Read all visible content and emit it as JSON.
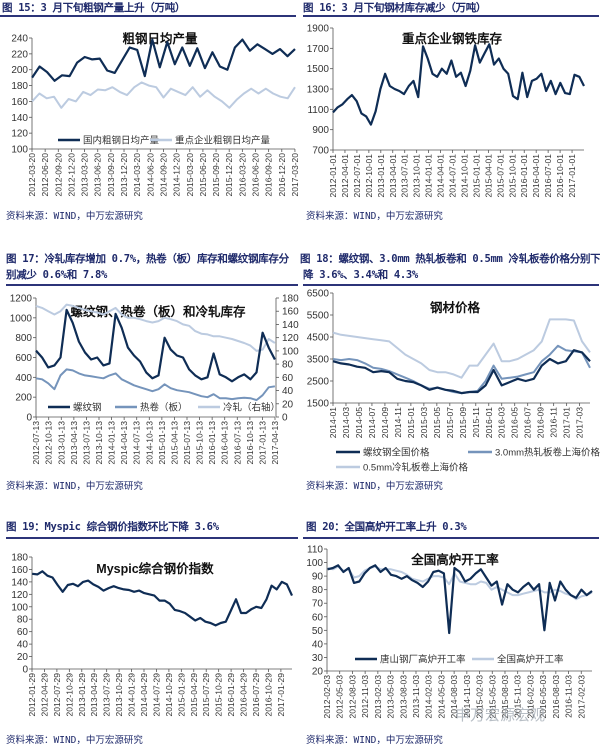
{
  "source_text": "资料来源：WIND，中万宏源研究",
  "panels": [
    {
      "heading": "图 15：3 月下旬粗钢产量上升（万吨）"
    },
    {
      "heading": "图 16：3 月下旬钢材库存减少（万吨）"
    },
    {
      "heading": "图 17：冷轧库存增加 0.7%，热卷（板）库存和螺纹钢库存分",
      "heading2": "别减少 0.6%和 7.8%"
    },
    {
      "heading": "图 18：螺纹钢、3.0mm 热轧板卷和 0.5mm 冷轧板卷价格分别下",
      "heading2": "降 3.6%、3.4%和 4.3%"
    },
    {
      "heading": "图 19：Myspic 综合钢价指数环比下降 3.6%"
    },
    {
      "heading": "图 20：全国高炉开工率上升 0.3%"
    }
  ],
  "colors": {
    "dark": "#0f2d55",
    "mid": "#7594bb",
    "light": "#bccbe0",
    "rule": "#2c3479"
  },
  "chart_data": [
    {
      "type": "line",
      "title": "粗钢日均产量",
      "ylim": [
        100,
        240
      ],
      "ystep": 20,
      "xticks": [
        "2012-03-20",
        "2012-06-20",
        "2012-09-20",
        "2012-12-20",
        "2013-03-20",
        "2013-06-20",
        "2013-09-20",
        "2013-12-20",
        "2014-03-20",
        "2014-06-20",
        "2014-09-20",
        "2014-12-20",
        "2015-03-20",
        "2015-06-20",
        "2015-09-20",
        "2015-12-20",
        "2016-03-20",
        "2016-06-20",
        "2016-09-20",
        "2016-12-20",
        "2017-03-20"
      ],
      "legend_position": "bottom-inside",
      "series": [
        {
          "name": "国内粗钢日均产量",
          "color": "dark",
          "x_start": 2012.22,
          "x_end": 2017.22,
          "values": [
            190,
            204,
            197,
            186,
            193,
            192,
            209,
            216,
            213,
            214,
            199,
            196,
            212,
            228,
            225,
            192,
            238,
            203,
            235,
            207,
            228,
            205,
            227,
            202,
            222,
            204,
            200,
            228,
            238,
            224,
            232,
            226,
            220,
            226,
            217,
            226
          ]
        },
        {
          "name": "重点企业粗钢日均产量",
          "color": "light",
          "x_start": 2012.22,
          "x_end": 2017.22,
          "values": [
            160,
            170,
            164,
            166,
            152,
            163,
            160,
            172,
            168,
            175,
            174,
            178,
            172,
            168,
            178,
            184,
            180,
            178,
            165,
            176,
            172,
            168,
            178,
            166,
            174,
            166,
            160,
            152,
            162,
            170,
            176,
            170,
            176,
            170,
            166,
            164,
            178
          ]
        }
      ]
    },
    {
      "type": "line",
      "title": "重点企业钢铁库存",
      "ylim": [
        700,
        1900
      ],
      "ystep": 200,
      "xticks": [
        "2012-01-01",
        "2012-04-01",
        "2012-07-01",
        "2012-10-01",
        "2013-01-01",
        "2013-04-01",
        "2013-07-01",
        "2013-10-01",
        "2014-01-01",
        "2014-04-01",
        "2014-07-01",
        "2014-10-01",
        "2015-01-01",
        "2015-04-01",
        "2015-07-01",
        "2015-10-01",
        "2016-01-01",
        "2016-04-01",
        "2016-07-01",
        "2016-10-01",
        "2017-01-01"
      ],
      "series": [
        {
          "name": "重点企业钢铁库存",
          "color": "dark",
          "x_start": 2012.0,
          "x_end": 2017.25,
          "values": [
            1070,
            1120,
            1150,
            1200,
            1240,
            1180,
            1060,
            1030,
            950,
            1080,
            1300,
            1450,
            1330,
            1300,
            1280,
            1250,
            1330,
            1380,
            1220,
            1720,
            1600,
            1450,
            1420,
            1500,
            1450,
            1580,
            1420,
            1460,
            1330,
            1480,
            1730,
            1560,
            1650,
            1740,
            1540,
            1600,
            1500,
            1450,
            1230,
            1200,
            1460,
            1220,
            1380,
            1400,
            1450,
            1280,
            1380,
            1250,
            1360,
            1260,
            1250,
            1440,
            1420,
            1330
          ]
        }
      ]
    },
    {
      "type": "line",
      "title": "螺纹钢、热卷（板）和冷轧库存",
      "ylim": [
        0,
        1200
      ],
      "ystep": 200,
      "y2lim": [
        0,
        180
      ],
      "y2step": 20,
      "xticks": [
        "2012-07-13",
        "2012-10-13",
        "2013-01-13",
        "2013-04-13",
        "2013-07-13",
        "2013-10-13",
        "2014-01-13",
        "2014-04-13",
        "2014-07-13",
        "2014-10-13",
        "2015-01-13",
        "2015-04-13",
        "2015-07-13",
        "2015-10-13",
        "2016-01-13",
        "2016-04-13",
        "2016-07-13",
        "2016-10-13",
        "2017-01-13",
        "2017-04-13"
      ],
      "legend_position": "bottom-inside",
      "series": [
        {
          "name": "螺纹钢",
          "color": "dark",
          "axis": "left",
          "x_start": 2012.53,
          "x_end": 2017.28,
          "values": [
            670,
            600,
            500,
            520,
            600,
            1080,
            950,
            760,
            650,
            580,
            600,
            520,
            540,
            1040,
            900,
            700,
            620,
            560,
            450,
            390,
            420,
            800,
            680,
            620,
            600,
            480,
            420,
            380,
            400,
            640,
            430,
            400,
            360,
            400,
            430,
            380,
            450,
            850,
            700,
            580
          ]
        },
        {
          "name": "热卷（板）",
          "color": "mid",
          "axis": "left",
          "x_start": 2012.53,
          "x_end": 2017.28,
          "values": [
            390,
            380,
            340,
            280,
            420,
            480,
            470,
            440,
            420,
            410,
            400,
            390,
            420,
            440,
            380,
            350,
            320,
            300,
            280,
            260,
            280,
            330,
            290,
            270,
            260,
            250,
            230,
            210,
            200,
            230,
            190,
            190,
            180,
            190,
            195,
            190,
            170,
            220,
            300,
            310
          ]
        },
        {
          "name": "冷轧（右轴）",
          "color": "light",
          "axis": "right",
          "x_start": 2012.53,
          "x_end": 2017.28,
          "values": [
            168,
            165,
            160,
            155,
            160,
            170,
            168,
            165,
            162,
            160,
            158,
            155,
            160,
            165,
            155,
            150,
            150,
            148,
            145,
            143,
            145,
            150,
            148,
            145,
            140,
            138,
            130,
            126,
            125,
            122,
            122,
            120,
            118,
            115,
            112,
            108,
            100,
            102,
            118,
            112
          ]
        }
      ]
    },
    {
      "type": "line",
      "title": "钢材价格",
      "ylim": [
        1500,
        6500
      ],
      "ystep": 1000,
      "xticks": [
        "2014-01",
        "2014-03",
        "2014-05",
        "2014-07",
        "2014-09",
        "2014-11",
        "2015-01",
        "2015-03",
        "2015-05",
        "2015-07",
        "2015-09",
        "2015-11",
        "2016-01",
        "2016-03",
        "2016-05",
        "2016-07",
        "2016-09",
        "2016-11",
        "2017-01",
        "2017-03"
      ],
      "legend_position": "below",
      "series": [
        {
          "name": "螺纹钢全国价格",
          "color": "dark",
          "x_start": 2014.0,
          "x_end": 2017.3,
          "values": [
            3400,
            3300,
            3250,
            3150,
            3100,
            2900,
            2950,
            2900,
            2600,
            2500,
            2450,
            2300,
            2100,
            2200,
            2100,
            2050,
            1950,
            2000,
            2000,
            2300,
            3000,
            2300,
            2450,
            2600,
            2500,
            2600,
            3200,
            3500,
            3300,
            3400,
            3900,
            3800,
            3400
          ]
        },
        {
          "name": "3.0mm热轧板卷上海价格",
          "color": "mid",
          "x_start": 2014.0,
          "x_end": 2017.3,
          "values": [
            3500,
            3450,
            3500,
            3450,
            3300,
            3100,
            3050,
            2950,
            2800,
            2650,
            2500,
            2300,
            2150,
            2200,
            2100,
            2000,
            1950,
            2000,
            2050,
            2500,
            3200,
            2600,
            2650,
            2700,
            2800,
            2900,
            3400,
            3700,
            4100,
            3900,
            3850,
            3800,
            3100
          ]
        },
        {
          "name": "0.5mm冷轧板卷上海价格",
          "color": "light",
          "x_start": 2014.0,
          "x_end": 2017.3,
          "values": [
            4700,
            4600,
            4550,
            4500,
            4450,
            4400,
            4350,
            4300,
            4000,
            3700,
            3500,
            3300,
            3000,
            2900,
            2900,
            2800,
            2650,
            3200,
            3200,
            3700,
            4200,
            3400,
            3400,
            3500,
            3700,
            3900,
            4300,
            5300,
            5300,
            5300,
            5250,
            4300,
            3800
          ]
        }
      ]
    },
    {
      "type": "line",
      "title": "Myspic综合钢价指数",
      "ylim": [
        0,
        180
      ],
      "ystep": 20,
      "xticks": [
        "2012-01-29",
        "2012-04-29",
        "2012-07-29",
        "2012-10-29",
        "2013-01-29",
        "2013-04-29",
        "2013-07-29",
        "2013-10-29",
        "2014-01-29",
        "2014-04-29",
        "2014-07-29",
        "2014-10-29",
        "2015-01-29",
        "2015-04-29",
        "2015-07-29",
        "2015-10-29",
        "2016-01-29",
        "2016-04-29",
        "2016-07-29",
        "2016-10-29",
        "2017-01-29"
      ],
      "series": [
        {
          "name": "Myspic综合钢价指数",
          "color": "dark",
          "x_start": 2012.08,
          "x_end": 2017.3,
          "values": [
            153,
            152,
            157,
            150,
            147,
            135,
            124,
            135,
            137,
            133,
            140,
            142,
            136,
            132,
            126,
            130,
            133,
            130,
            128,
            127,
            124,
            126,
            122,
            120,
            118,
            110,
            110,
            105,
            95,
            93,
            90,
            84,
            78,
            82,
            76,
            74,
            70,
            74,
            76,
            94,
            112,
            90,
            90,
            96,
            100,
            98,
            112,
            134,
            128,
            140,
            136,
            118
          ]
        }
      ]
    },
    {
      "type": "line",
      "title": "全国高炉开工率",
      "ylim": [
        20,
        110
      ],
      "ystep": 10,
      "xticks": [
        "2012-02-03",
        "2012-05-03",
        "2012-08-03",
        "2012-11-03",
        "2013-02-03",
        "2013-05-03",
        "2013-08-03",
        "2013-11-03",
        "2014-02-03",
        "2014-05-03",
        "2014-08-03",
        "2014-11-03",
        "2015-02-03",
        "2015-05-03",
        "2015-08-03",
        "2015-11-03",
        "2016-02-03",
        "2016-05-03",
        "2016-08-03",
        "2016-11-03",
        "2017-02-03"
      ],
      "legend_position": "bottom-inside",
      "watermark": "申万宏源宏观",
      "series": [
        {
          "name": "唐山钢厂高炉开工率",
          "color": "dark",
          "x_start": 2012.1,
          "x_end": 2017.3,
          "values": [
            95,
            96,
            98,
            93,
            96,
            85,
            86,
            92,
            96,
            98,
            93,
            96,
            91,
            90,
            88,
            90,
            87,
            85,
            82,
            86,
            93,
            94,
            92,
            48,
            96,
            93,
            86,
            88,
            92,
            95,
            89,
            83,
            86,
            69,
            84,
            80,
            78,
            82,
            85,
            80,
            84,
            50,
            85,
            72,
            86,
            80,
            76,
            74,
            80,
            76,
            79
          ]
        },
        {
          "name": "全国高炉开工率",
          "color": "light",
          "x_start": 2012.1,
          "x_end": 2017.3,
          "values": [
            96,
            95,
            97,
            94,
            95,
            89,
            90,
            94,
            96,
            97,
            95,
            95,
            95,
            94,
            93,
            91,
            88,
            87,
            86,
            88,
            90,
            90,
            89,
            84,
            92,
            86,
            85,
            84,
            84,
            86,
            85,
            80,
            82,
            80,
            78,
            76,
            76,
            77,
            78,
            79,
            80,
            78,
            78,
            80,
            79,
            77,
            76,
            73,
            75,
            76,
            78
          ]
        }
      ]
    }
  ]
}
